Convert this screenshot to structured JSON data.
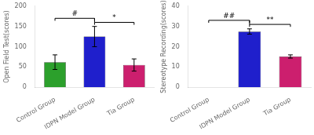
{
  "chart_data": [
    {
      "type": "bar",
      "categories": [
        "Control Group",
        "IDPN Model Group",
        "Tia Group"
      ],
      "values": [
        62,
        125,
        55
      ],
      "errors": [
        18,
        25,
        15
      ],
      "colors": [
        "#2ca02c",
        "#1f1fcc",
        "#cc1f6e"
      ],
      "ylabel": "Open Field Test(scores)",
      "ylim": [
        0,
        200
      ],
      "yticks": [
        0,
        50,
        100,
        150,
        200
      ],
      "grid": false,
      "annotations": [
        {
          "text": "#",
          "from": "Control Group",
          "to": "IDPN Model Group",
          "y": 170
        },
        {
          "text": "*",
          "from": "IDPN Model Group",
          "to": "Tia Group",
          "y": 160
        }
      ]
    },
    {
      "type": "bar",
      "categories": [
        "Control Group",
        "IDPN Model Group",
        "Tia Group"
      ],
      "values": [
        null,
        27.5,
        15.2
      ],
      "errors": [
        null,
        1.3,
        0.8
      ],
      "colors": [
        "#2ca02c",
        "#1f1fcc",
        "#cc1f6e"
      ],
      "ylabel": "Stereotype Recording(scores)",
      "ylim": [
        0,
        40
      ],
      "yticks": [
        0,
        10,
        20,
        30,
        40
      ],
      "grid": false,
      "annotations": [
        {
          "text": "##",
          "from": "Control Group",
          "to": "IDPN Model Group",
          "y": 33
        },
        {
          "text": "**",
          "from": "IDPN Model Group",
          "to": "Tia Group",
          "y": 31
        }
      ]
    }
  ]
}
